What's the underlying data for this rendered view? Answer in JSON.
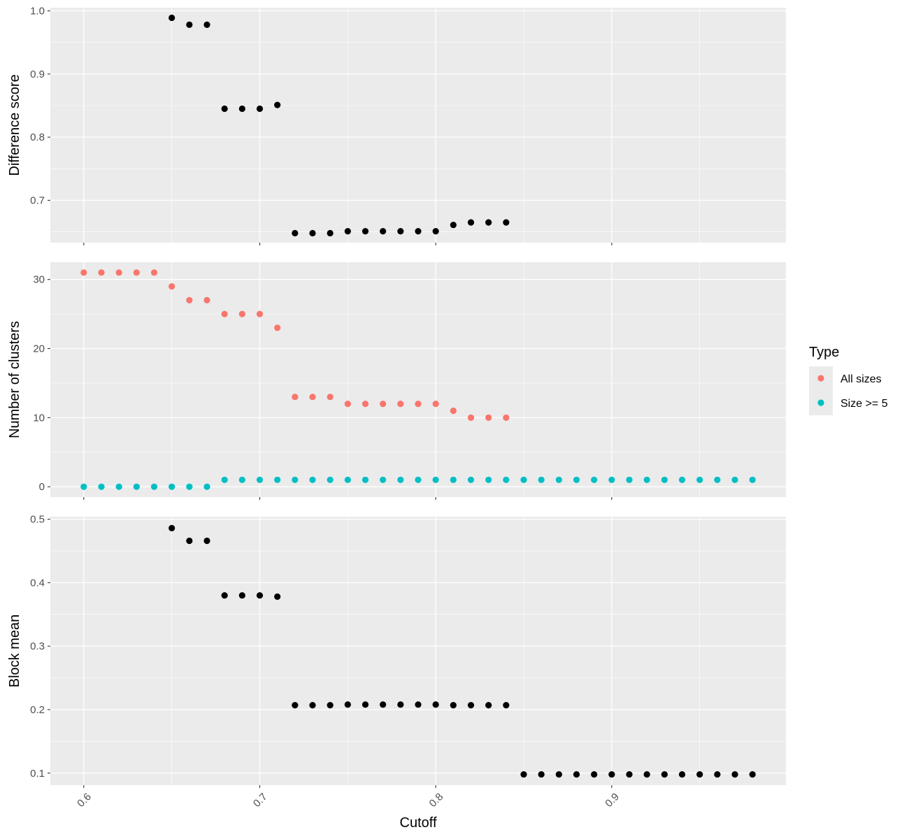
{
  "chart_data": {
    "type": "scatter",
    "facets": "stacked panels sharing x axis",
    "xlabel": "Cutoff",
    "xlim": [
      0.581,
      0.999
    ],
    "x_ticks": [
      0.6,
      0.7,
      0.8,
      0.9
    ],
    "x_tick_labels": [
      "0.6",
      "0.7",
      "0.8",
      "0.9"
    ],
    "grid": true,
    "legend": {
      "title": "Type",
      "position": "right",
      "items": [
        {
          "label": "All sizes",
          "color": "#F8766D"
        },
        {
          "label": "Size >= 5",
          "color": "#00BFC4"
        }
      ]
    },
    "panels": [
      {
        "ylabel": "Difference score",
        "ylim": [
          0.633,
          1.005
        ],
        "y_ticks": [
          0.7,
          0.8,
          0.9,
          1.0
        ],
        "y_tick_labels": [
          "0.7",
          "0.8",
          "0.9",
          "1.0"
        ],
        "series": [
          {
            "color": "#000000",
            "x": [
              0.65,
              0.66,
              0.67,
              0.68,
              0.69,
              0.7,
              0.71,
              0.72,
              0.73,
              0.74,
              0.75,
              0.76,
              0.77,
              0.78,
              0.79,
              0.8,
              0.81,
              0.82,
              0.83,
              0.84
            ],
            "y": [
              0.989,
              0.978,
              0.978,
              0.845,
              0.845,
              0.845,
              0.851,
              0.648,
              0.648,
              0.648,
              0.651,
              0.651,
              0.651,
              0.651,
              0.651,
              0.651,
              0.661,
              0.665,
              0.665,
              0.665
            ]
          }
        ]
      },
      {
        "ylabel": "Number of clusters",
        "ylim": [
          -1.5,
          32.5
        ],
        "y_ticks": [
          0,
          10,
          20,
          30
        ],
        "y_tick_labels": [
          "0",
          "10",
          "20",
          "30"
        ],
        "series": [
          {
            "name": "All sizes",
            "color": "#F8766D",
            "x": [
              0.6,
              0.61,
              0.62,
              0.63,
              0.64,
              0.65,
              0.66,
              0.67,
              0.68,
              0.69,
              0.7,
              0.71,
              0.72,
              0.73,
              0.74,
              0.75,
              0.76,
              0.77,
              0.78,
              0.79,
              0.8,
              0.81,
              0.82,
              0.83,
              0.84
            ],
            "y": [
              31,
              31,
              31,
              31,
              31,
              29,
              27,
              27,
              25,
              25,
              25,
              23,
              13,
              13,
              13,
              12,
              12,
              12,
              12,
              12,
              12,
              11,
              10,
              10,
              10
            ]
          },
          {
            "name": "Size >= 5",
            "color": "#00BFC4",
            "x": [
              0.6,
              0.61,
              0.62,
              0.63,
              0.64,
              0.65,
              0.66,
              0.67,
              0.68,
              0.69,
              0.7,
              0.71,
              0.72,
              0.73,
              0.74,
              0.75,
              0.76,
              0.77,
              0.78,
              0.79,
              0.8,
              0.81,
              0.82,
              0.83,
              0.84,
              0.85,
              0.86,
              0.87,
              0.88,
              0.89,
              0.9,
              0.91,
              0.92,
              0.93,
              0.94,
              0.95,
              0.96,
              0.97,
              0.98
            ],
            "y": [
              0,
              0,
              0,
              0,
              0,
              0,
              0,
              0,
              1,
              1,
              1,
              1,
              1,
              1,
              1,
              1,
              1,
              1,
              1,
              1,
              1,
              1,
              1,
              1,
              1,
              1,
              1,
              1,
              1,
              1,
              1,
              1,
              1,
              1,
              1,
              1,
              1,
              1,
              1
            ]
          }
        ]
      },
      {
        "ylabel": "Block mean",
        "ylim": [
          0.081,
          0.504
        ],
        "y_ticks": [
          0.1,
          0.2,
          0.3,
          0.4,
          0.5
        ],
        "y_tick_labels": [
          "0.1",
          "0.2",
          "0.3",
          "0.4",
          "0.5"
        ],
        "series": [
          {
            "color": "#000000",
            "x": [
              0.65,
              0.66,
              0.67,
              0.68,
              0.69,
              0.7,
              0.71,
              0.72,
              0.73,
              0.74,
              0.75,
              0.76,
              0.77,
              0.78,
              0.79,
              0.8,
              0.81,
              0.82,
              0.83,
              0.84,
              0.85,
              0.86,
              0.87,
              0.88,
              0.89,
              0.9,
              0.91,
              0.92,
              0.93,
              0.94,
              0.95,
              0.96,
              0.97,
              0.98
            ],
            "y": [
              0.486,
              0.466,
              0.466,
              0.38,
              0.38,
              0.38,
              0.378,
              0.207,
              0.207,
              0.207,
              0.208,
              0.208,
              0.208,
              0.208,
              0.208,
              0.208,
              0.207,
              0.207,
              0.207,
              0.207,
              0.098,
              0.098,
              0.098,
              0.098,
              0.098,
              0.098,
              0.098,
              0.098,
              0.098,
              0.098,
              0.098,
              0.098,
              0.098,
              0.098
            ]
          }
        ]
      }
    ]
  }
}
